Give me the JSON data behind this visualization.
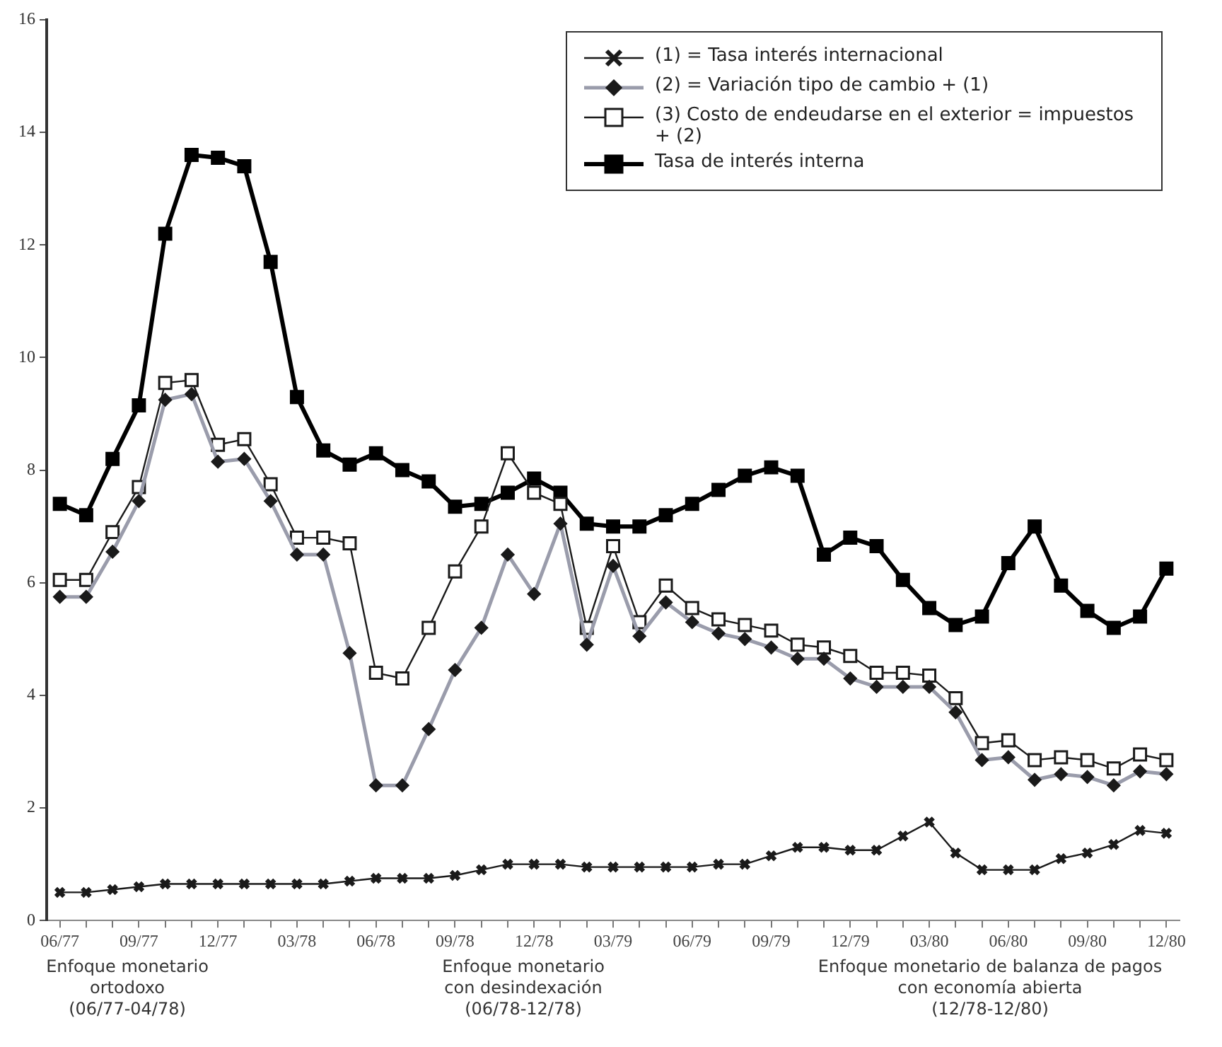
{
  "chart_data": {
    "type": "line",
    "categories": [
      "06/77",
      null,
      null,
      "09/77",
      null,
      null,
      "12/77",
      null,
      null,
      "03/78",
      null,
      null,
      "06/78",
      null,
      null,
      "09/78",
      null,
      null,
      "12/78",
      null,
      null,
      "03/79",
      null,
      null,
      "06/79",
      null,
      null,
      "09/79",
      null,
      null,
      "12/79",
      null,
      null,
      "03/80",
      null,
      null,
      "06/80",
      null,
      null,
      "09/80",
      null,
      null,
      "12/80"
    ],
    "series": [
      {
        "name": "(1) = Tasa interés internacional",
        "color": "#1a1a1a",
        "marker": "cross",
        "values": [
          0.5,
          0.5,
          0.55,
          0.6,
          0.65,
          0.65,
          0.65,
          0.65,
          0.65,
          0.65,
          0.65,
          0.7,
          0.75,
          0.75,
          0.75,
          0.8,
          0.9,
          1.0,
          1.0,
          1.0,
          0.95,
          0.95,
          0.95,
          0.95,
          0.95,
          1.0,
          1.0,
          1.15,
          1.3,
          1.3,
          1.25,
          1.25,
          1.5,
          1.75,
          1.2,
          0.9,
          0.9,
          0.9,
          1.1,
          1.2,
          1.35,
          1.6,
          1.55
        ]
      },
      {
        "name": "(2) = Variación tipo de cambio + (1)",
        "color": "#1a1a1a",
        "marker": "diamond",
        "values": [
          5.75,
          5.75,
          6.55,
          7.45,
          9.25,
          9.35,
          8.15,
          8.2,
          7.45,
          6.5,
          6.5,
          4.75,
          2.4,
          2.4,
          3.4,
          4.45,
          5.2,
          6.5,
          5.8,
          7.05,
          4.9,
          6.3,
          5.05,
          5.65,
          5.3,
          5.1,
          5.0,
          4.85,
          4.65,
          4.65,
          4.3,
          4.15,
          4.15,
          4.15,
          3.7,
          2.85,
          2.9,
          2.5,
          2.6,
          2.55,
          2.4,
          2.65,
          2.6
        ]
      },
      {
        "name": "(3) Costo de endeudarse en el exterior = impuestos + (2)",
        "color": "#1a1a1a",
        "marker": "square",
        "values": [
          6.05,
          6.05,
          6.9,
          7.7,
          9.55,
          9.6,
          8.45,
          8.55,
          7.75,
          6.8,
          6.8,
          6.7,
          4.4,
          4.3,
          5.2,
          6.2,
          7.0,
          8.3,
          7.6,
          7.4,
          5.2,
          6.65,
          5.3,
          5.95,
          5.55,
          5.35,
          5.25,
          5.15,
          4.9,
          4.85,
          4.7,
          4.4,
          4.4,
          4.35,
          3.95,
          3.15,
          3.2,
          2.85,
          2.9,
          2.85,
          2.7,
          2.95,
          2.85
        ]
      },
      {
        "name": "Tasa de interés interna",
        "color": "#000000",
        "marker": "square",
        "values": [
          7.4,
          7.2,
          8.2,
          9.15,
          12.2,
          13.6,
          13.55,
          13.4,
          11.7,
          9.3,
          8.35,
          8.1,
          8.3,
          8.0,
          7.8,
          7.35,
          7.4,
          7.6,
          7.85,
          7.6,
          7.05,
          7.0,
          7.0,
          7.2,
          7.4,
          7.65,
          7.9,
          8.05,
          7.9,
          6.5,
          6.8,
          6.65,
          6.05,
          5.55,
          5.25,
          5.4,
          6.35,
          7.0,
          5.95,
          5.5,
          5.2,
          5.4,
          6.25
        ]
      }
    ],
    "ylim": [
      0,
      16
    ],
    "yticks": [
      0,
      2,
      4,
      6,
      8,
      10,
      12,
      14,
      16
    ],
    "grid": false,
    "legend": "top right",
    "annotations": [
      "Enfoque monetario\nortodoxo\n(06/77-04/78)",
      "Enfoque monetario\ncon desindexación\n(06/78-12/78)",
      "Enfoque monetario de balanza de pagos\ncon economía abierta\n(12/78-12/80)"
    ]
  }
}
